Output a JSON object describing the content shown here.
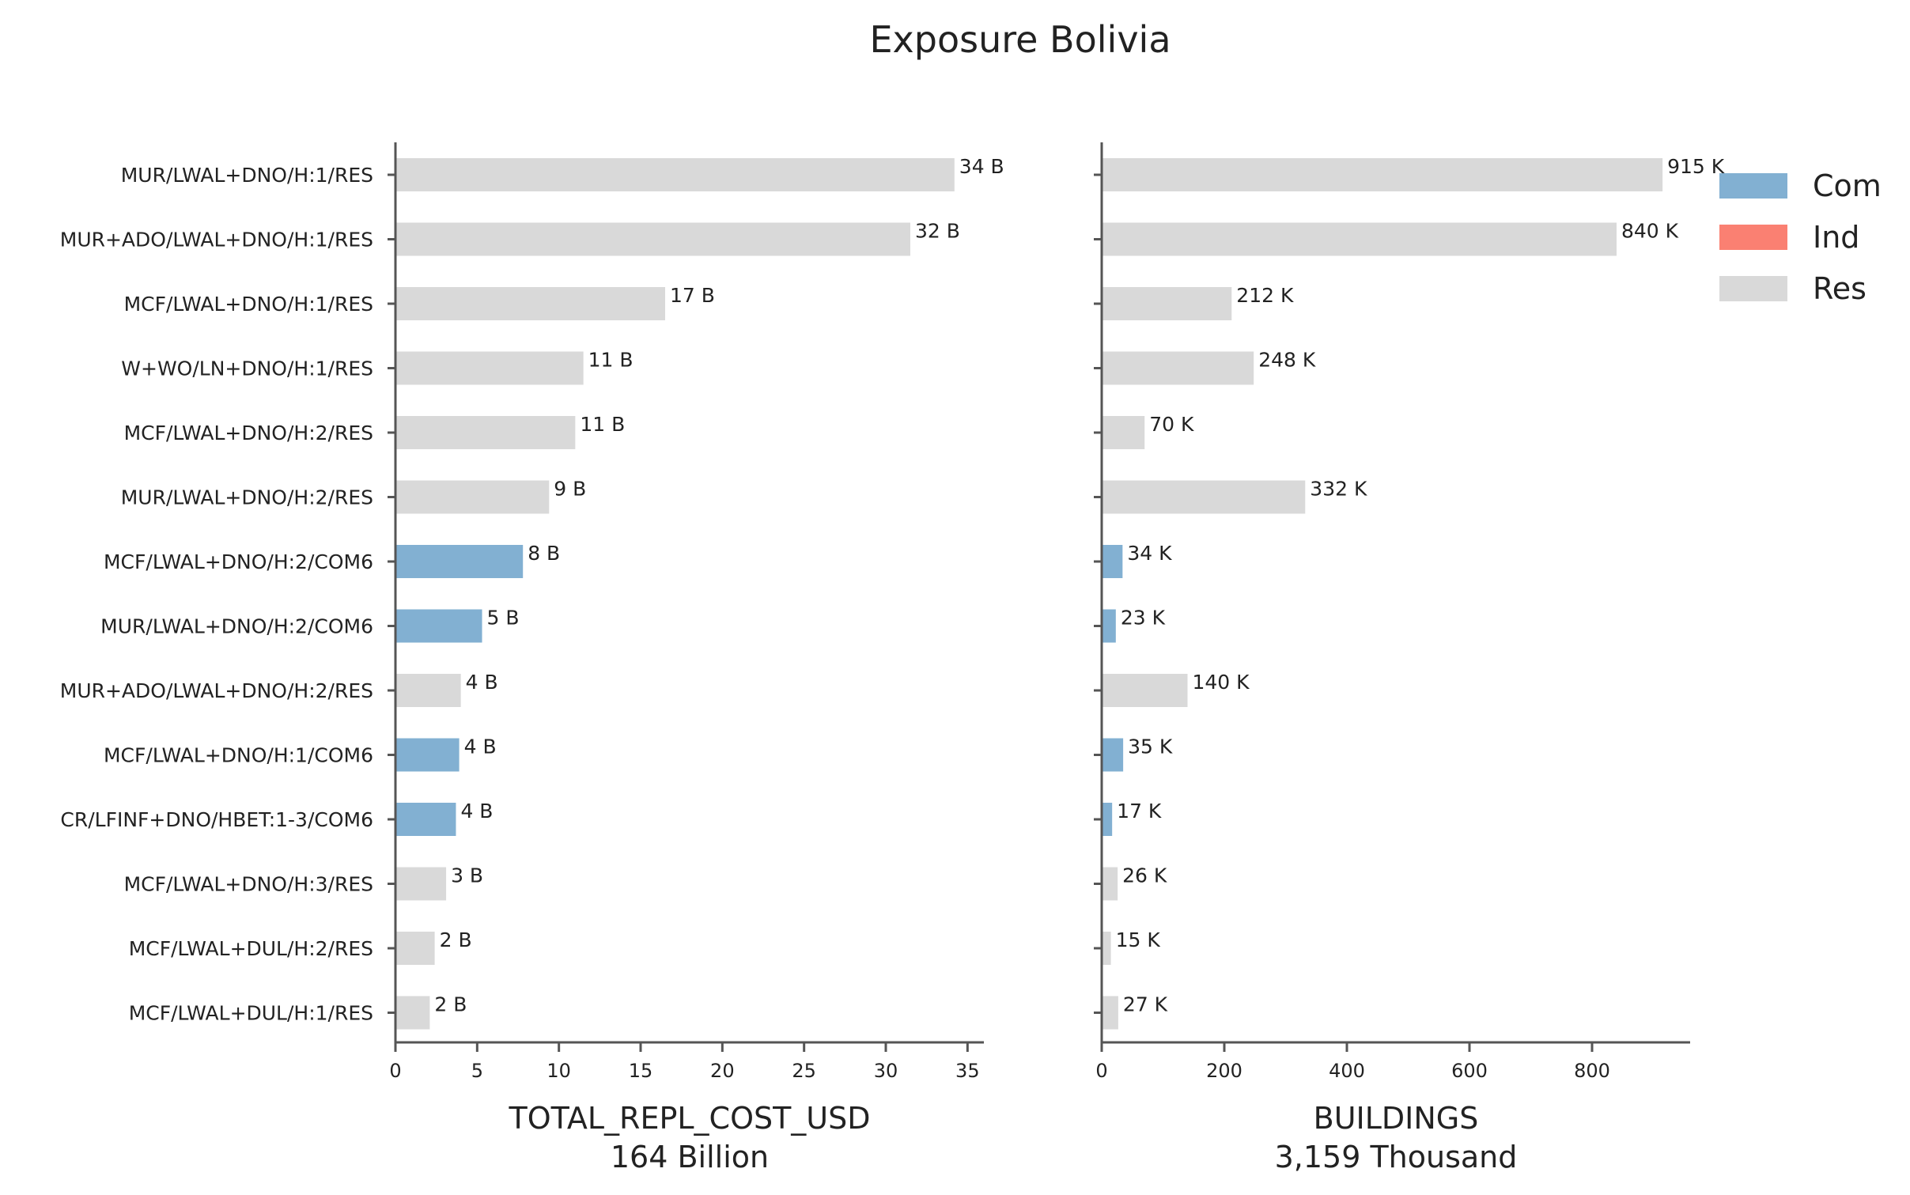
{
  "chart_data": {
    "type": "bar",
    "orientation": "horizontal",
    "title": "Exposure Bolivia",
    "categories": [
      "MUR/LWAL+DNO/H:1/RES",
      "MUR+ADO/LWAL+DNO/H:1/RES",
      "MCF/LWAL+DNO/H:1/RES",
      "W+WO/LN+DNO/H:1/RES",
      "MCF/LWAL+DNO/H:2/RES",
      "MUR/LWAL+DNO/H:2/RES",
      "MCF/LWAL+DNO/H:2/COM6",
      "MUR/LWAL+DNO/H:2/COM6",
      "MUR+ADO/LWAL+DNO/H:2/RES",
      "MCF/LWAL+DNO/H:1/COM6",
      "CR/LFINF+DNO/HBET:1-3/COM6",
      "MCF/LWAL+DNO/H:3/RES",
      "MCF/LWAL+DUL/H:2/RES",
      "MCF/LWAL+DUL/H:1/RES"
    ],
    "occupancy": [
      "Res",
      "Res",
      "Res",
      "Res",
      "Res",
      "Res",
      "Com",
      "Com",
      "Res",
      "Com",
      "Com",
      "Res",
      "Res",
      "Res"
    ],
    "legend": {
      "placement": "top-right",
      "entries": [
        {
          "label": "Com",
          "color": "#82B0D2"
        },
        {
          "label": "Ind",
          "color": "#FA8072"
        },
        {
          "label": "Res",
          "color": "#D9D9D9"
        }
      ]
    },
    "panels": [
      {
        "xlabel": "TOTAL_REPL_COST_USD",
        "subtitle": "164 Billion",
        "xlim": [
          0,
          36
        ],
        "xticks": [
          0,
          5,
          10,
          15,
          20,
          25,
          30,
          35
        ],
        "values": [
          34.2,
          31.5,
          16.5,
          11.5,
          11.0,
          9.4,
          7.8,
          5.3,
          4.0,
          3.9,
          3.7,
          3.1,
          2.4,
          2.1
        ],
        "value_labels": [
          "34 B",
          "32 B",
          "17 B",
          "11 B",
          "11 B",
          "9 B",
          "8 B",
          "5 B",
          "4 B",
          "4 B",
          "4 B",
          "3 B",
          "2 B",
          "2 B"
        ]
      },
      {
        "xlabel": "BUILDINGS",
        "subtitle": "3,159 Thousand",
        "xlim": [
          0,
          960
        ],
        "xticks": [
          0,
          200,
          400,
          600,
          800
        ],
        "values": [
          915,
          840,
          212,
          248,
          70,
          332,
          34,
          23,
          140,
          35,
          17,
          26,
          15,
          27
        ],
        "value_labels": [
          "915 K",
          "840 K",
          "212 K",
          "248 K",
          "70 K",
          "332 K",
          "34 K",
          "23 K",
          "140 K",
          "35 K",
          "17 K",
          "26 K",
          "15 K",
          "27 K"
        ]
      }
    ]
  }
}
